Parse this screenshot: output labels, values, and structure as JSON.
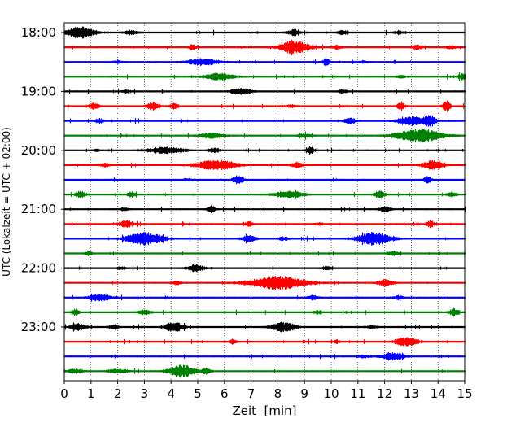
{
  "chart_data": {
    "type": "line",
    "title": "",
    "xlabel": "Zeit  [min]",
    "ylabel": "UTC (Lokalzeit = UTC + 02:00)",
    "xlim": [
      0,
      15
    ],
    "x_ticks": [
      "0",
      "1",
      "2",
      "3",
      "4",
      "5",
      "6",
      "7",
      "8",
      "9",
      "10",
      "11",
      "12",
      "13",
      "14",
      "15"
    ],
    "y_ticks": [
      "18:00",
      "19:00",
      "20:00",
      "21:00",
      "22:00",
      "23:00"
    ],
    "minutes_per_trace": 15,
    "grid": "vertical dotted",
    "colors_cycle": [
      "#000000",
      "#ff0000",
      "#0000ff",
      "#008000"
    ],
    "series": [
      {
        "start": "18:00",
        "color": "#000000",
        "bursts": [
          [
            0.6,
            0.95,
            0.5
          ],
          [
            2.5,
            0.3,
            0.3
          ],
          [
            8.6,
            0.5,
            0.25
          ],
          [
            10.4,
            0.35,
            0.2
          ],
          [
            12.5,
            0.2,
            0.2
          ]
        ]
      },
      {
        "start": "18:15",
        "color": "#ff0000",
        "bursts": [
          [
            4.8,
            0.4,
            0.15
          ],
          [
            8.6,
            1.0,
            0.55
          ],
          [
            10.2,
            0.3,
            0.2
          ],
          [
            13.2,
            0.35,
            0.2
          ],
          [
            14.5,
            0.3,
            0.2
          ]
        ]
      },
      {
        "start": "18:30",
        "color": "#0000ff",
        "bursts": [
          [
            5.2,
            0.5,
            0.6
          ],
          [
            9.8,
            0.55,
            0.15
          ],
          [
            2.0,
            0.2,
            0.2
          ],
          [
            11.2,
            0.2,
            0.2
          ]
        ]
      },
      {
        "start": "18:45",
        "color": "#008000",
        "bursts": [
          [
            5.8,
            0.5,
            0.6
          ],
          [
            14.9,
            0.55,
            0.15
          ],
          [
            12.6,
            0.2,
            0.2
          ]
        ]
      },
      {
        "start": "19:00",
        "color": "#000000",
        "bursts": [
          [
            6.6,
            0.5,
            0.4
          ],
          [
            2.3,
            0.2,
            0.2
          ],
          [
            10.4,
            0.3,
            0.2
          ]
        ]
      },
      {
        "start": "19:15",
        "color": "#ff0000",
        "bursts": [
          [
            1.1,
            0.5,
            0.2
          ],
          [
            3.3,
            0.6,
            0.25
          ],
          [
            4.1,
            0.45,
            0.15
          ],
          [
            12.6,
            0.6,
            0.15
          ],
          [
            14.3,
            0.8,
            0.15
          ],
          [
            8.5,
            0.25,
            0.2
          ]
        ]
      },
      {
        "start": "19:30",
        "color": "#0000ff",
        "bursts": [
          [
            1.3,
            0.4,
            0.15
          ],
          [
            10.7,
            0.45,
            0.25
          ],
          [
            13.0,
            0.6,
            0.6
          ],
          [
            13.7,
            0.8,
            0.2
          ]
        ]
      },
      {
        "start": "19:45",
        "color": "#008000",
        "bursts": [
          [
            5.5,
            0.4,
            0.5
          ],
          [
            13.3,
            1.0,
            0.9
          ],
          [
            9.0,
            0.25,
            0.3
          ]
        ]
      },
      {
        "start": "20:00",
        "color": "#000000",
        "bursts": [
          [
            3.8,
            0.5,
            0.7
          ],
          [
            5.6,
            0.4,
            0.2
          ],
          [
            9.2,
            0.6,
            0.15
          ],
          [
            1.2,
            0.2,
            0.2
          ]
        ]
      },
      {
        "start": "20:15",
        "color": "#ff0000",
        "bursts": [
          [
            5.7,
            0.75,
            0.8
          ],
          [
            8.7,
            0.55,
            0.2
          ],
          [
            13.8,
            0.7,
            0.4
          ],
          [
            1.5,
            0.3,
            0.2
          ]
        ]
      },
      {
        "start": "20:30",
        "color": "#0000ff",
        "bursts": [
          [
            6.5,
            0.7,
            0.2
          ],
          [
            13.6,
            0.6,
            0.15
          ],
          [
            4.6,
            0.2,
            0.2
          ]
        ]
      },
      {
        "start": "20:45",
        "color": "#008000",
        "bursts": [
          [
            0.6,
            0.5,
            0.2
          ],
          [
            2.5,
            0.4,
            0.15
          ],
          [
            8.4,
            0.55,
            0.6
          ],
          [
            11.8,
            0.6,
            0.2
          ],
          [
            14.5,
            0.3,
            0.2
          ]
        ]
      },
      {
        "start": "21:00",
        "color": "#000000",
        "bursts": [
          [
            5.5,
            0.55,
            0.15
          ],
          [
            12.0,
            0.35,
            0.25
          ],
          [
            2.2,
            0.2,
            0.2
          ]
        ]
      },
      {
        "start": "21:15",
        "color": "#ff0000",
        "bursts": [
          [
            2.3,
            0.6,
            0.25
          ],
          [
            6.9,
            0.4,
            0.15
          ],
          [
            13.7,
            0.5,
            0.15
          ],
          [
            9.5,
            0.2,
            0.2
          ]
        ]
      },
      {
        "start": "21:30",
        "color": "#0000ff",
        "bursts": [
          [
            3.0,
            0.95,
            0.7
          ],
          [
            11.6,
            1.0,
            0.65
          ],
          [
            6.9,
            0.5,
            0.3
          ],
          [
            8.2,
            0.3,
            0.2
          ]
        ]
      },
      {
        "start": "21:45",
        "color": "#008000",
        "bursts": [
          [
            0.9,
            0.3,
            0.15
          ],
          [
            12.3,
            0.35,
            0.2
          ]
        ]
      },
      {
        "start": "22:00",
        "color": "#000000",
        "bursts": [
          [
            4.9,
            0.55,
            0.3
          ],
          [
            2.1,
            0.25,
            0.2
          ],
          [
            9.8,
            0.3,
            0.2
          ]
        ]
      },
      {
        "start": "22:15",
        "color": "#ff0000",
        "bursts": [
          [
            8.0,
            1.0,
            1.1
          ],
          [
            12.0,
            0.5,
            0.3
          ],
          [
            4.2,
            0.3,
            0.2
          ]
        ]
      },
      {
        "start": "22:30",
        "color": "#0000ff",
        "bursts": [
          [
            1.3,
            0.6,
            0.4
          ],
          [
            9.3,
            0.4,
            0.2
          ],
          [
            12.5,
            0.3,
            0.2
          ]
        ]
      },
      {
        "start": "22:45",
        "color": "#008000",
        "bursts": [
          [
            0.4,
            0.45,
            0.15
          ],
          [
            3.0,
            0.35,
            0.3
          ],
          [
            14.6,
            0.55,
            0.2
          ],
          [
            9.5,
            0.3,
            0.2
          ]
        ]
      },
      {
        "start": "23:00",
        "color": "#000000",
        "bursts": [
          [
            0.5,
            0.55,
            0.3
          ],
          [
            4.1,
            0.75,
            0.35
          ],
          [
            8.2,
            0.75,
            0.45
          ],
          [
            1.8,
            0.3,
            0.2
          ],
          [
            11.5,
            0.3,
            0.2
          ]
        ]
      },
      {
        "start": "23:15",
        "color": "#ff0000",
        "bursts": [
          [
            6.3,
            0.35,
            0.15
          ],
          [
            12.8,
            0.65,
            0.45
          ],
          [
            10.2,
            0.25,
            0.15
          ]
        ]
      },
      {
        "start": "23:30",
        "color": "#0000ff",
        "bursts": [
          [
            12.3,
            0.55,
            0.45
          ],
          [
            11.2,
            0.25,
            0.2
          ]
        ]
      },
      {
        "start": "23:45",
        "color": "#008000",
        "bursts": [
          [
            4.4,
            0.95,
            0.5
          ],
          [
            2.0,
            0.35,
            0.4
          ],
          [
            5.3,
            0.4,
            0.15
          ],
          [
            0.4,
            0.3,
            0.3
          ]
        ]
      }
    ]
  }
}
